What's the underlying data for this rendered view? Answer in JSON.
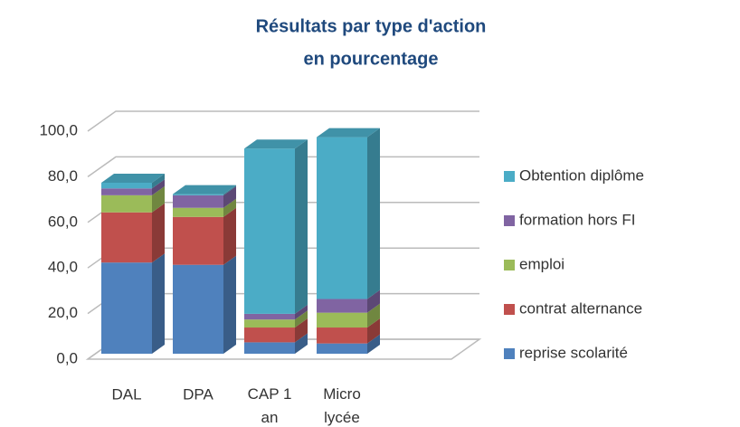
{
  "chart_data": {
    "type": "bar3d-stacked",
    "title": [
      "Résultats par type d'action",
      "en pourcentage"
    ],
    "categories": [
      "DAL",
      "DPA",
      "CAP 1 an",
      "Micro lycée"
    ],
    "series": [
      {
        "name": "reprise scolarité",
        "color": "#4f81bd",
        "values": [
          40,
          39,
          5,
          4.5
        ]
      },
      {
        "name": "contrat alternance",
        "color": "#c0504d",
        "values": [
          22,
          21,
          6.5,
          7
        ]
      },
      {
        "name": "emploi",
        "color": "#9bbb59",
        "values": [
          7.5,
          4,
          3.5,
          6.5
        ]
      },
      {
        "name": "formation hors FI",
        "color": "#8064a2",
        "values": [
          3,
          5.5,
          2.5,
          6
        ]
      },
      {
        "name": "Obtention diplôme",
        "color": "#4bacc6",
        "values": [
          2.5,
          0.5,
          72.5,
          71
        ]
      }
    ],
    "ylim": [
      0,
      100
    ],
    "yticks": [
      {
        "value": 0,
        "label": "0,0"
      },
      {
        "value": 20,
        "label": "20,0"
      },
      {
        "value": 40,
        "label": "40,0"
      },
      {
        "value": 60,
        "label": "60,0"
      },
      {
        "value": 80,
        "label": "80,0"
      },
      {
        "value": 100,
        "label": "100,0"
      }
    ],
    "grid": true,
    "legend": "right"
  }
}
